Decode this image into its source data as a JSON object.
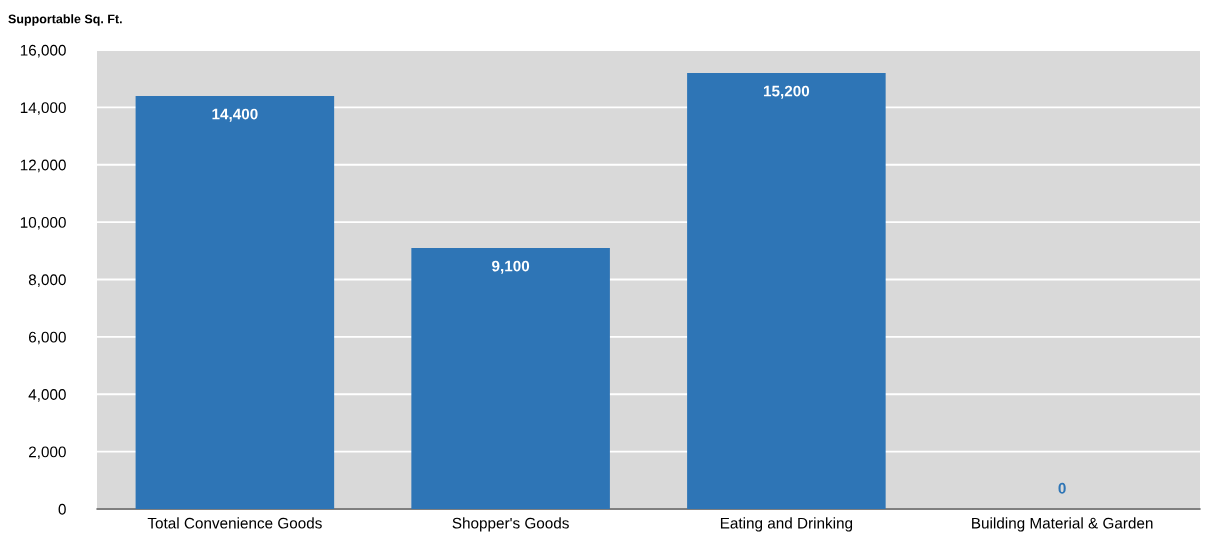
{
  "chart_data": {
    "type": "bar",
    "ylabel": "Supportable Sq. Ft.",
    "categories": [
      "Total Convenience Goods",
      "Shopper's Goods",
      "Eating and Drinking",
      "Building Material & Garden"
    ],
    "values": [
      14400,
      9100,
      15200,
      0
    ],
    "color": "#2e75b6",
    "ylim": [
      0,
      16000
    ],
    "yticks": [
      {
        "value": 0,
        "label": "0"
      },
      {
        "value": 2000,
        "label": "2,000"
      },
      {
        "value": 4000,
        "label": "4,000"
      },
      {
        "value": 6000,
        "label": "6,000"
      },
      {
        "value": 8000,
        "label": "8,000"
      },
      {
        "value": 10000,
        "label": "10,000"
      },
      {
        "value": 12000,
        "label": "12,000"
      },
      {
        "value": 14000,
        "label": "14,000"
      },
      {
        "value": 16000,
        "label": "16,000"
      }
    ],
    "value_labels": [
      "14,400",
      "9,100",
      "15,200",
      "0"
    ],
    "grid": "y",
    "legend": false
  }
}
